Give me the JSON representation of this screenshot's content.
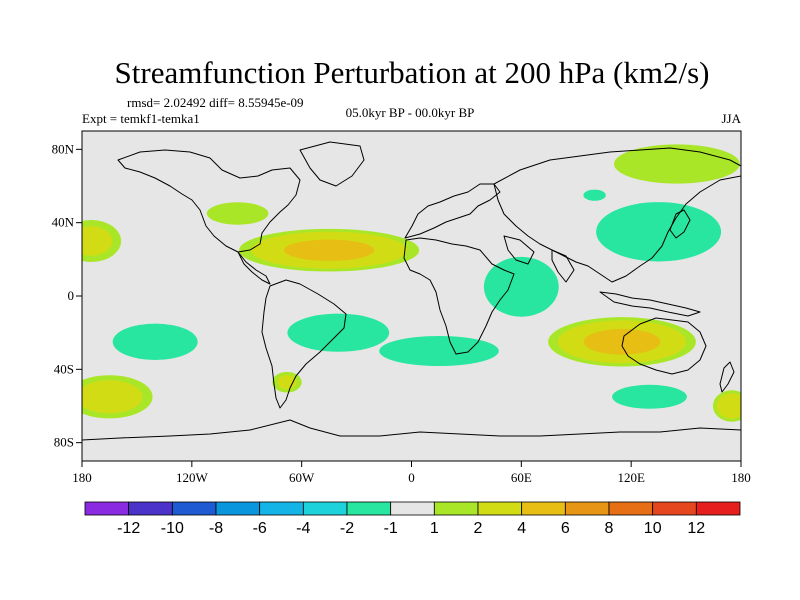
{
  "title": "Streamfunction Perturbation at 200 hPa (km2/s)",
  "stats_line": "rmsd= 2.02492 diff= 8.55945e-09",
  "experiment": "Expt = temkf1-temka1",
  "period": "05.0kyr BP - 00.0kyr BP",
  "season": "JJA",
  "chart_data": {
    "type": "heatmap",
    "projection": "cylindrical-equidistant",
    "lon_range": [
      -180,
      180
    ],
    "lat_range": [
      -90,
      90
    ],
    "x_ticks": [
      {
        "value": -180,
        "label": "180"
      },
      {
        "value": -120,
        "label": "120W"
      },
      {
        "value": -60,
        "label": "60W"
      },
      {
        "value": 0,
        "label": "0"
      },
      {
        "value": 60,
        "label": "60E"
      },
      {
        "value": 120,
        "label": "120E"
      },
      {
        "value": 180,
        "label": "180"
      }
    ],
    "y_ticks": [
      {
        "value": 80,
        "label": "80N"
      },
      {
        "value": 40,
        "label": "40N"
      },
      {
        "value": 0,
        "label": "0"
      },
      {
        "value": -40,
        "label": "40S"
      },
      {
        "value": -80,
        "label": "80S"
      }
    ],
    "colorbar": {
      "labels": [
        "-12",
        "-10",
        "-8",
        "-6",
        "-4",
        "-2",
        "-1",
        "1",
        "2",
        "4",
        "6",
        "8",
        "10",
        "12"
      ],
      "colors": [
        "#8a2be2",
        "#4b32c8",
        "#1e5ad2",
        "#0a96dc",
        "#14b4e6",
        "#1ed2dc",
        "#28e6a0",
        "#e6e6e6",
        "#aae628",
        "#d2dc14",
        "#e6be14",
        "#e69614",
        "#e66e14",
        "#e6461e",
        "#e61e1e"
      ]
    },
    "features": [
      {
        "lon": -175,
        "lat": 30,
        "rx": 20,
        "ry": 14,
        "value": 2.2
      },
      {
        "lon": -165,
        "lat": -55,
        "rx": 28,
        "ry": 14,
        "value": 2.6
      },
      {
        "lon": -95,
        "lat": 45,
        "rx": 22,
        "ry": 8,
        "value": 1.6
      },
      {
        "lon": -45,
        "lat": 25,
        "rx": 55,
        "ry": 13,
        "value": 4.2
      },
      {
        "lon": -140,
        "lat": -25,
        "rx": 28,
        "ry": 12,
        "value": -2.4
      },
      {
        "lon": -40,
        "lat": -20,
        "rx": 32,
        "ry": 12,
        "value": -3.3
      },
      {
        "lon": 15,
        "lat": -30,
        "rx": 40,
        "ry": 10,
        "value": -2.2
      },
      {
        "lon": 60,
        "lat": 5,
        "rx": 25,
        "ry": 20,
        "value": -2.2
      },
      {
        "lon": 135,
        "lat": 35,
        "rx": 38,
        "ry": 18,
        "value": -4.4
      },
      {
        "lon": 145,
        "lat": 72,
        "rx": 45,
        "ry": 14,
        "value": 1.6
      },
      {
        "lon": 115,
        "lat": -25,
        "rx": 45,
        "ry": 15,
        "value": 4.3
      },
      {
        "lon": 130,
        "lat": -55,
        "rx": 25,
        "ry": 8,
        "value": -2.2
      },
      {
        "lon": -68,
        "lat": -47,
        "rx": 10,
        "ry": 7,
        "value": 2.0
      },
      {
        "lon": 100,
        "lat": 55,
        "rx": 8,
        "ry": 4,
        "value": -1.6
      },
      {
        "lon": 175,
        "lat": -60,
        "rx": 12,
        "ry": 10,
        "value": 3.0
      }
    ]
  }
}
